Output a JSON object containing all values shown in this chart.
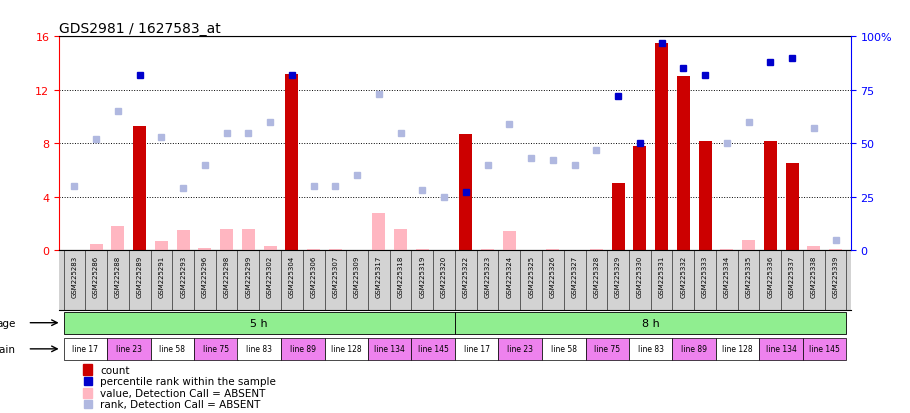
{
  "title": "GDS2981 / 1627583_at",
  "samples": [
    "GSM225283",
    "GSM225286",
    "GSM225288",
    "GSM225289",
    "GSM225291",
    "GSM225293",
    "GSM225296",
    "GSM225298",
    "GSM225299",
    "GSM225302",
    "GSM225304",
    "GSM225306",
    "GSM225307",
    "GSM225309",
    "GSM225317",
    "GSM225318",
    "GSM225319",
    "GSM225320",
    "GSM225322",
    "GSM225323",
    "GSM225324",
    "GSM225325",
    "GSM225326",
    "GSM225327",
    "GSM225328",
    "GSM225329",
    "GSM225330",
    "GSM225331",
    "GSM225332",
    "GSM225333",
    "GSM225334",
    "GSM225335",
    "GSM225336",
    "GSM225337",
    "GSM225338",
    "GSM225339"
  ],
  "count_values": [
    0.0,
    0.5,
    1.8,
    9.3,
    0.7,
    1.5,
    0.2,
    1.6,
    1.6,
    0.3,
    13.2,
    0.1,
    0.1,
    0.0,
    2.8,
    1.6,
    0.1,
    0.0,
    8.7,
    0.1,
    1.4,
    0.0,
    0.1,
    0.0,
    0.1,
    5.0,
    7.8,
    15.5,
    13.0,
    8.2,
    0.1,
    0.8,
    8.2,
    6.5,
    0.3,
    0.1
  ],
  "count_absent": [
    true,
    true,
    true,
    false,
    true,
    true,
    true,
    true,
    true,
    true,
    false,
    true,
    true,
    true,
    true,
    true,
    true,
    true,
    false,
    true,
    true,
    true,
    true,
    true,
    true,
    false,
    false,
    false,
    false,
    false,
    true,
    true,
    false,
    false,
    true,
    true
  ],
  "rank_values": [
    30,
    52,
    65,
    82,
    53,
    29,
    40,
    55,
    55,
    60,
    82,
    30,
    30,
    35,
    73,
    55,
    28,
    25,
    27,
    40,
    59,
    43,
    42,
    40,
    47,
    72,
    50,
    97,
    85,
    82,
    50,
    60,
    88,
    90,
    57,
    5
  ],
  "rank_absent": [
    true,
    true,
    true,
    false,
    true,
    true,
    true,
    true,
    true,
    true,
    false,
    true,
    true,
    true,
    true,
    true,
    true,
    true,
    false,
    true,
    true,
    true,
    true,
    true,
    true,
    false,
    false,
    false,
    false,
    false,
    true,
    true,
    false,
    false,
    true,
    true
  ],
  "ylim_left": [
    0,
    16
  ],
  "ylim_right": [
    0,
    100
  ],
  "yticks_left": [
    0,
    4,
    8,
    12,
    16
  ],
  "yticks_right": [
    0,
    25,
    50,
    75,
    100
  ],
  "strain_names_5h": [
    "line 17",
    "line 23",
    "line 58",
    "line 75",
    "line 83",
    "line 89",
    "line 128",
    "line 134",
    "line 145"
  ],
  "strain_names_8h": [
    "line 17",
    "line 23",
    "line 58",
    "line 75",
    "line 83",
    "line 89",
    "line 128",
    "line 134",
    "line 145"
  ],
  "strain_colors_5h": [
    "#ffffff",
    "#ee82ee",
    "#ffffff",
    "#ee82ee",
    "#ffffff",
    "#ee82ee",
    "#ffffff",
    "#ee82ee",
    "#ee82ee"
  ],
  "strain_colors_8h": [
    "#ffffff",
    "#ee82ee",
    "#ffffff",
    "#ee82ee",
    "#ffffff",
    "#ee82ee",
    "#ffffff",
    "#ee82ee",
    "#ee82ee"
  ],
  "age_color": "#90ee90",
  "color_bar_present": "#cc0000",
  "color_bar_absent": "#ffb6c1",
  "color_rank_present": "#0000cc",
  "color_rank_absent": "#b0b8e0",
  "bg_color": "#ffffff",
  "ticklabel_bg": "#d3d3d3",
  "bar_width": 0.6
}
